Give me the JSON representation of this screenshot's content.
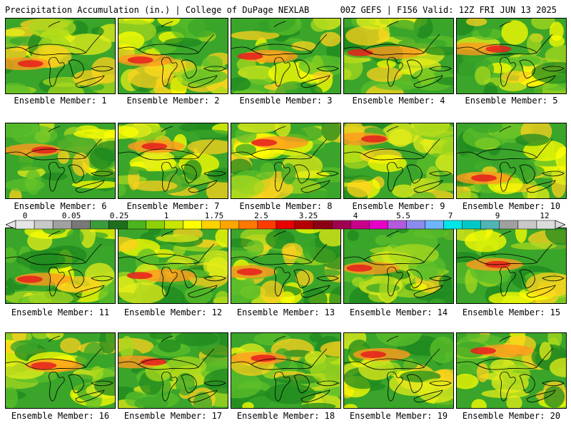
{
  "header": {
    "left": "Precipitation Accumulation (in.) | College of DuPage NEXLAB",
    "right": "00Z GEFS | F156 Valid: 12Z FRI JUN 13 2025"
  },
  "members": [
    {
      "label": "Ensemble Member: 1"
    },
    {
      "label": "Ensemble Member: 2"
    },
    {
      "label": "Ensemble Member: 3"
    },
    {
      "label": "Ensemble Member: 4"
    },
    {
      "label": "Ensemble Member: 5"
    },
    {
      "label": "Ensemble Member: 6"
    },
    {
      "label": "Ensemble Member: 7"
    },
    {
      "label": "Ensemble Member: 8"
    },
    {
      "label": "Ensemble Member: 9"
    },
    {
      "label": "Ensemble Member: 10"
    },
    {
      "label": "Ensemble Member: 11"
    },
    {
      "label": "Ensemble Member: 12"
    },
    {
      "label": "Ensemble Member: 13"
    },
    {
      "label": "Ensemble Member: 14"
    },
    {
      "label": "Ensemble Member: 15"
    },
    {
      "label": "Ensemble Member: 16"
    },
    {
      "label": "Ensemble Member: 17"
    },
    {
      "label": "Ensemble Member: 18"
    },
    {
      "label": "Ensemble Member: 19"
    },
    {
      "label": "Ensemble Member: 20"
    }
  ],
  "colorbar": {
    "tick_labels": [
      "0",
      "0.05",
      "0.25",
      "1",
      "1.75",
      "2.5",
      "3.25",
      "4",
      "5.5",
      "7",
      "9",
      "12"
    ],
    "colors": [
      "#e6e6e6",
      "#c8c8c8",
      "#a0a0a0",
      "#787878",
      "#3c9b3c",
      "#1e6e1e",
      "#4cb41e",
      "#8cd20a",
      "#c8e600",
      "#ffff00",
      "#ffd200",
      "#ffa500",
      "#ff7800",
      "#ff3c00",
      "#e60000",
      "#b40000",
      "#8c0014",
      "#a00050",
      "#c8008c",
      "#e600c8",
      "#b45adc",
      "#8c8cf0",
      "#6eb4ff",
      "#00e6e6",
      "#00c8c8",
      "#50b4b4",
      "#a0a0a0",
      "#c8c8c8",
      "#dcdcdc"
    ]
  }
}
